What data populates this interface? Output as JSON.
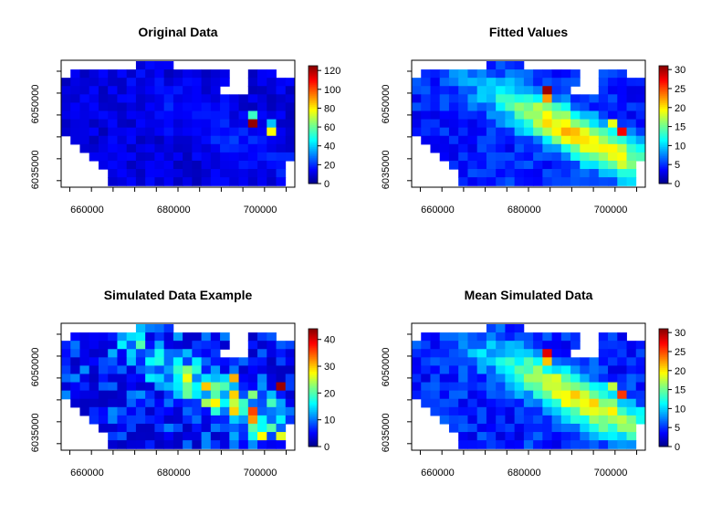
{
  "chart_data": [
    {
      "type": "heatmap",
      "title": "Original Data",
      "x_ticks": [
        "660000",
        "680000",
        "700000"
      ],
      "y_ticks": [
        "6035000",
        "6050000"
      ],
      "legend_ticks": [
        "0",
        "20",
        "40",
        "60",
        "80",
        "100",
        "120"
      ],
      "zlim": [
        0,
        125
      ],
      "grid": [
        [
          null,
          null,
          null,
          null,
          null,
          null,
          null,
          null,
          null,
          null,
          null,
          null,
          null,
          null,
          null,
          null,
          null,
          null,
          null,
          null,
          null,
          null,
          null,
          null,
          null
        ],
        [
          null,
          null,
          null,
          null,
          null,
          null,
          null,
          null,
          null,
          null,
          null,
          null,
          null,
          null,
          null,
          null,
          null,
          null,
          null,
          null,
          null,
          null,
          null,
          null,
          null
        ],
        [
          null,
          null,
          null,
          null,
          null,
          null,
          null,
          null,
          null,
          null,
          null,
          null,
          null,
          null,
          null,
          null,
          null,
          null,
          null,
          null,
          null,
          null,
          null,
          null,
          null
        ],
        [
          null,
          null,
          null,
          null,
          null,
          null,
          null,
          null,
          null,
          null,
          null,
          null,
          null,
          null,
          null,
          null,
          null,
          null,
          null,
          null,
          null,
          null,
          null,
          null,
          null
        ],
        [
          null,
          null,
          null,
          null,
          null,
          null,
          null,
          null,
          null,
          null,
          null,
          null,
          null,
          null,
          null,
          null,
          null,
          null,
          null,
          null,
          null,
          null,
          null,
          null,
          null
        ],
        [
          null,
          null,
          null,
          null,
          null,
          null,
          null,
          null,
          null,
          null,
          null,
          null,
          null,
          null,
          null,
          null,
          null,
          null,
          null,
          null,
          null,
          null,
          null,
          null,
          null
        ],
        [
          null,
          null,
          null,
          null,
          null,
          null,
          null,
          null,
          null,
          null,
          null,
          null,
          null,
          null,
          null,
          null,
          null,
          null,
          null,
          null,
          null,
          null,
          null,
          null,
          null
        ],
        [
          null,
          null,
          null,
          null,
          null,
          null,
          null,
          null,
          null,
          null,
          null,
          null,
          null,
          null,
          null,
          null,
          null,
          null,
          null,
          null,
          null,
          null,
          null,
          null,
          null
        ],
        [
          null,
          null,
          null,
          null,
          null,
          null,
          null,
          null,
          null,
          null,
          null,
          null,
          null,
          null,
          null,
          null,
          null,
          null,
          null,
          null,
          null,
          null,
          null,
          null,
          null
        ],
        [
          null,
          null,
          null,
          null,
          null,
          null,
          null,
          null,
          null,
          null,
          null,
          null,
          null,
          null,
          null,
          null,
          null,
          null,
          null,
          null,
          null,
          null,
          null,
          null,
          null
        ],
        [
          null,
          null,
          null,
          null,
          null,
          null,
          null,
          null,
          null,
          null,
          null,
          null,
          null,
          null,
          null,
          null,
          null,
          null,
          null,
          null,
          null,
          null,
          null,
          null,
          null
        ],
        [
          null,
          null,
          null,
          null,
          null,
          null,
          null,
          null,
          null,
          null,
          null,
          null,
          null,
          null,
          null,
          null,
          null,
          null,
          null,
          null,
          null,
          null,
          null,
          null,
          null
        ],
        [
          null,
          null,
          null,
          null,
          null,
          null,
          null,
          null,
          null,
          null,
          null,
          null,
          null,
          null,
          null,
          null,
          null,
          null,
          null,
          null,
          null,
          null,
          null,
          null,
          null
        ],
        [
          null,
          null,
          null,
          null,
          null,
          null,
          null,
          null,
          null,
          null,
          null,
          null,
          null,
          null,
          null,
          null,
          null,
          null,
          null,
          null,
          null,
          null,
          null,
          null,
          null
        ],
        [
          null,
          null,
          null,
          null,
          null,
          null,
          null,
          null,
          null,
          null,
          null,
          null,
          null,
          null,
          null,
          null,
          null,
          null,
          null,
          null,
          null,
          null,
          null,
          null,
          null
        ]
      ]
    },
    {
      "type": "heatmap",
      "title": "Fitted Values",
      "x_ticks": [
        "660000",
        "680000",
        "700000"
      ],
      "y_ticks": [
        "6035000",
        "6050000"
      ],
      "legend_ticks": [
        "0",
        "5",
        "10",
        "15",
        "20",
        "25",
        "30"
      ],
      "zlim": [
        0,
        31
      ]
    },
    {
      "type": "heatmap",
      "title": "Simulated Data Example",
      "x_ticks": [
        "660000",
        "680000",
        "700000"
      ],
      "y_ticks": [
        "6035000",
        "6050000"
      ],
      "legend_ticks": [
        "0",
        "10",
        "20",
        "30",
        "40"
      ],
      "zlim": [
        0,
        44
      ]
    },
    {
      "type": "heatmap",
      "title": "Mean Simulated Data",
      "x_ticks": [
        "660000",
        "680000",
        "700000"
      ],
      "y_ticks": [
        "6035000",
        "6050000"
      ],
      "legend_ticks": [
        "0",
        "5",
        "10",
        "15",
        "20",
        "25",
        "30"
      ],
      "zlim": [
        0,
        31
      ]
    }
  ]
}
